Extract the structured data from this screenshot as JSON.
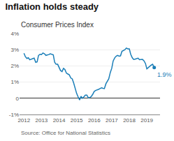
{
  "chart_data": {
    "type": "line",
    "title": "Inflation holds steady",
    "subtitle": "Consumer Prices Index",
    "source": "Source: Office for National Statistics",
    "annotation": "1.9%",
    "color": "#1a7eb8",
    "x": [
      2012.0,
      2012.08,
      2012.17,
      2012.25,
      2012.33,
      2012.42,
      2012.5,
      2012.58,
      2012.67,
      2012.75,
      2012.83,
      2012.92,
      2013.0,
      2013.08,
      2013.17,
      2013.25,
      2013.33,
      2013.42,
      2013.5,
      2013.58,
      2013.67,
      2013.75,
      2013.83,
      2013.92,
      2014.0,
      2014.08,
      2014.17,
      2014.25,
      2014.33,
      2014.42,
      2014.5,
      2014.58,
      2014.67,
      2014.75,
      2014.83,
      2014.92,
      2015.0,
      2015.08,
      2015.17,
      2015.25,
      2015.33,
      2015.42,
      2015.5,
      2015.58,
      2015.67,
      2015.75,
      2015.83,
      2015.92,
      2016.0,
      2016.08,
      2016.17,
      2016.25,
      2016.33,
      2016.42,
      2016.5,
      2016.58,
      2016.67,
      2016.75,
      2016.83,
      2016.92,
      2017.0,
      2017.08,
      2017.17,
      2017.25,
      2017.33,
      2017.42,
      2017.5,
      2017.58,
      2017.67,
      2017.75,
      2017.83,
      2017.92,
      2018.0,
      2018.08,
      2018.17,
      2018.25,
      2018.33,
      2018.42,
      2018.5,
      2018.58,
      2018.67,
      2018.75,
      2018.83,
      2018.92,
      2019.0,
      2019.08,
      2019.17,
      2019.25,
      2019.33,
      2019.42
    ],
    "values": [
      2.78,
      2.57,
      2.46,
      2.5,
      2.38,
      2.4,
      2.45,
      2.48,
      2.22,
      2.25,
      2.65,
      2.72,
      2.7,
      2.8,
      2.75,
      2.65,
      2.67,
      2.7,
      2.75,
      2.72,
      2.68,
      2.22,
      2.1,
      2.1,
      1.88,
      1.72,
      1.65,
      1.85,
      1.78,
      1.55,
      1.5,
      1.45,
      1.25,
      1.2,
      0.95,
      0.55,
      0.3,
      0.1,
      -0.1,
      0.12,
      0.0,
      0.1,
      0.2,
      0.2,
      0.03,
      0.05,
      0.1,
      0.25,
      0.42,
      0.48,
      0.5,
      0.55,
      0.6,
      0.65,
      0.62,
      0.6,
      0.9,
      1.05,
      1.2,
      1.6,
      1.85,
      2.3,
      2.5,
      2.6,
      2.65,
      2.6,
      2.62,
      2.9,
      2.95,
      3.0,
      3.1,
      3.05,
      3.05,
      2.72,
      2.5,
      2.4,
      2.42,
      2.45,
      2.48,
      2.38,
      2.4,
      2.4,
      2.32,
      2.15,
      1.82,
      1.9,
      2.0,
      2.05,
      2.1,
      1.9
    ],
    "xlim": [
      2011.75,
      2019.75
    ],
    "xticks": [
      2012,
      2013,
      2014,
      2015,
      2016,
      2017,
      2018,
      2019
    ],
    "ylim": [
      -1,
      4
    ],
    "yticks": [
      {
        "value": -1,
        "label": "-1%"
      },
      0,
      {
        "value": 1,
        "label": "1%"
      },
      {
        "value": 2,
        "label": "2%"
      },
      {
        "value": 3,
        "label": "3%"
      },
      {
        "value": 4,
        "label": "4%"
      }
    ],
    "grid": true
  }
}
